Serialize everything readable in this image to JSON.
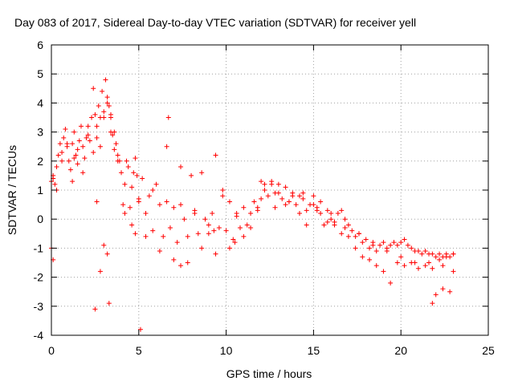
{
  "chart_data": {
    "type": "scatter",
    "title": "Day 083 of 2017, Sidereal Day-to-day VTEC variation (SDTVAR) for receiver yell",
    "xlabel": "GPS time / hours",
    "ylabel": "SDTVAR / TECUs",
    "xlim": [
      0,
      25
    ],
    "ylim": [
      -4,
      6
    ],
    "xticks": [
      0,
      5,
      10,
      15,
      20,
      25
    ],
    "yticks": [
      -4,
      -3,
      -2,
      -1,
      0,
      1,
      2,
      3,
      4,
      5,
      6
    ],
    "grid": true,
    "marker": "+",
    "color": "#ff0000",
    "series": [
      {
        "name": "SDTVAR",
        "x": [
          0.0,
          0.1,
          0.2,
          0.3,
          0.4,
          0.5,
          0.6,
          0.7,
          0.8,
          0.9,
          1.0,
          1.1,
          1.2,
          1.3,
          1.4,
          1.5,
          1.6,
          1.7,
          1.8,
          1.9,
          2.0,
          2.1,
          2.2,
          2.3,
          2.4,
          2.5,
          2.6,
          2.7,
          2.8,
          2.9,
          3.0,
          3.1,
          3.2,
          3.3,
          3.4,
          3.5,
          3.6,
          3.7,
          3.8,
          3.9,
          4.0,
          4.1,
          4.2,
          4.3,
          4.4,
          4.5,
          4.6,
          4.7,
          4.8,
          4.9,
          5.0,
          5.2,
          5.4,
          5.6,
          5.8,
          6.0,
          6.2,
          6.4,
          6.6,
          6.8,
          7.0,
          7.2,
          7.4,
          7.6,
          7.8,
          8.0,
          8.2,
          8.4,
          8.6,
          8.8,
          9.0,
          9.2,
          9.4,
          9.6,
          9.8,
          10.0,
          10.2,
          10.4,
          10.6,
          10.8,
          11.0,
          11.2,
          11.4,
          11.6,
          11.8,
          12.0,
          12.2,
          12.4,
          12.6,
          12.8,
          13.0,
          13.2,
          13.4,
          13.6,
          13.8,
          14.0,
          14.2,
          14.4,
          14.6,
          14.8,
          15.0,
          15.2,
          15.4,
          15.6,
          15.8,
          16.0,
          16.2,
          16.4,
          16.6,
          16.8,
          17.0,
          17.2,
          17.4,
          17.6,
          17.8,
          18.0,
          18.2,
          18.4,
          18.6,
          18.8,
          19.0,
          19.2,
          19.4,
          19.6,
          19.8,
          20.0,
          20.2,
          20.4,
          20.6,
          20.8,
          21.0,
          21.2,
          21.4,
          21.6,
          21.8,
          22.0,
          22.2,
          22.4,
          22.6,
          22.8,
          23.0,
          0.1,
          0.3,
          0.6,
          0.9,
          1.2,
          1.5,
          1.8,
          2.1,
          2.4,
          2.6,
          2.8,
          3.0,
          3.2,
          3.4,
          3.6,
          3.8,
          4.2,
          4.6,
          5.0,
          5.4,
          5.8,
          6.2,
          6.6,
          7.0,
          7.4,
          7.8,
          8.2,
          8.6,
          9.0,
          9.4,
          9.8,
          10.2,
          10.6,
          11.0,
          11.4,
          11.8,
          12.2,
          12.6,
          13.0,
          13.4,
          13.8,
          14.2,
          14.6,
          15.0,
          15.4,
          15.8,
          16.2,
          16.6,
          17.0,
          17.4,
          17.8,
          18.2,
          18.6,
          19.0,
          19.4,
          19.8,
          20.2,
          20.6,
          21.0,
          21.4,
          21.8,
          22.2,
          22.6,
          23.0,
          2.5,
          2.8,
          3.0,
          3.2,
          3.3,
          4.8,
          5.1,
          6.7,
          7.4,
          9.3,
          10.5,
          0.1,
          0.0,
          1.3,
          2.6,
          3.4,
          12.0,
          12.8,
          13.6,
          14.4,
          15.2,
          16.0,
          16.8,
          17.6,
          18.4,
          19.2,
          20.0,
          20.8,
          21.6,
          22.4,
          23.0,
          21.8,
          22.0,
          22.4,
          22.8
        ],
        "y": [
          1.3,
          1.5,
          1.2,
          1.8,
          2.2,
          2.6,
          2.3,
          2.8,
          3.1,
          2.5,
          2.0,
          1.7,
          2.6,
          3.0,
          2.2,
          1.9,
          2.7,
          3.2,
          2.5,
          2.1,
          2.8,
          3.2,
          2.7,
          3.5,
          4.5,
          3.6,
          2.8,
          3.9,
          3.5,
          4.4,
          3.5,
          4.8,
          4.2,
          3.9,
          3.6,
          2.9,
          3.0,
          2.6,
          2.2,
          2.0,
          1.6,
          0.5,
          1.2,
          2.0,
          1.8,
          0.4,
          1.1,
          1.6,
          2.1,
          1.5,
          0.6,
          1.4,
          0.2,
          0.8,
          -0.4,
          1.2,
          0.5,
          -0.6,
          2.5,
          -0.3,
          0.4,
          -0.8,
          1.8,
          0.0,
          -0.6,
          1.5,
          0.2,
          -0.5,
          1.6,
          0.0,
          -0.5,
          0.2,
          2.2,
          -0.3,
          1.0,
          -0.4,
          0.6,
          -0.7,
          0.2,
          -0.3,
          0.4,
          -0.2,
          0.2,
          0.6,
          0.3,
          0.7,
          1.2,
          0.8,
          1.3,
          0.9,
          1.2,
          0.7,
          1.1,
          0.6,
          0.9,
          0.5,
          0.8,
          0.7,
          0.3,
          0.5,
          0.8,
          0.4,
          0.6,
          -0.2,
          0.3,
          0.0,
          -0.1,
          0.2,
          0.3,
          0.0,
          -0.2,
          -0.4,
          -0.6,
          -0.5,
          -0.8,
          -0.7,
          -1.0,
          -0.8,
          -1.1,
          -0.9,
          -0.8,
          -1.0,
          -0.9,
          -0.8,
          -0.9,
          -0.8,
          -0.7,
          -0.9,
          -1.0,
          -1.1,
          -1.1,
          -1.2,
          -1.1,
          -1.2,
          -1.2,
          -1.3,
          -1.2,
          -1.3,
          -1.2,
          -1.3,
          -1.2,
          1.4,
          1.0,
          2.0,
          2.6,
          1.3,
          2.4,
          1.6,
          2.9,
          2.3,
          3.2,
          2.5,
          3.7,
          4.0,
          3.0,
          2.4,
          2.0,
          0.2,
          -0.2,
          0.7,
          -0.6,
          1.0,
          -1.1,
          0.6,
          -1.4,
          0.5,
          -1.5,
          0.3,
          -1.0,
          -0.2,
          -1.2,
          0.8,
          -1.0,
          0.1,
          -0.6,
          -0.3,
          0.4,
          1.0,
          1.2,
          0.9,
          0.5,
          0.8,
          0.2,
          -0.2,
          0.5,
          0.2,
          -0.1,
          -0.2,
          -0.5,
          -0.6,
          -1.0,
          -1.3,
          -1.4,
          -1.6,
          -1.8,
          -2.2,
          -1.5,
          -1.6,
          -1.5,
          -1.7,
          -1.6,
          -1.7,
          -1.4,
          -1.3,
          -1.2,
          -3.1,
          -1.8,
          -0.9,
          -1.2,
          -2.9,
          -0.5,
          -3.8,
          3.5,
          -1.6,
          -0.4,
          -0.8,
          -1.4,
          -1.0,
          2.1,
          0.6,
          3.5,
          1.3,
          0.4,
          0.6,
          0.9,
          0.3,
          0.2,
          -0.3,
          -0.5,
          -0.9,
          -1.1,
          -1.3,
          -1.5,
          -1.5,
          -1.6,
          -1.8,
          -2.9,
          -2.6,
          -2.4,
          -2.5
        ]
      }
    ]
  }
}
